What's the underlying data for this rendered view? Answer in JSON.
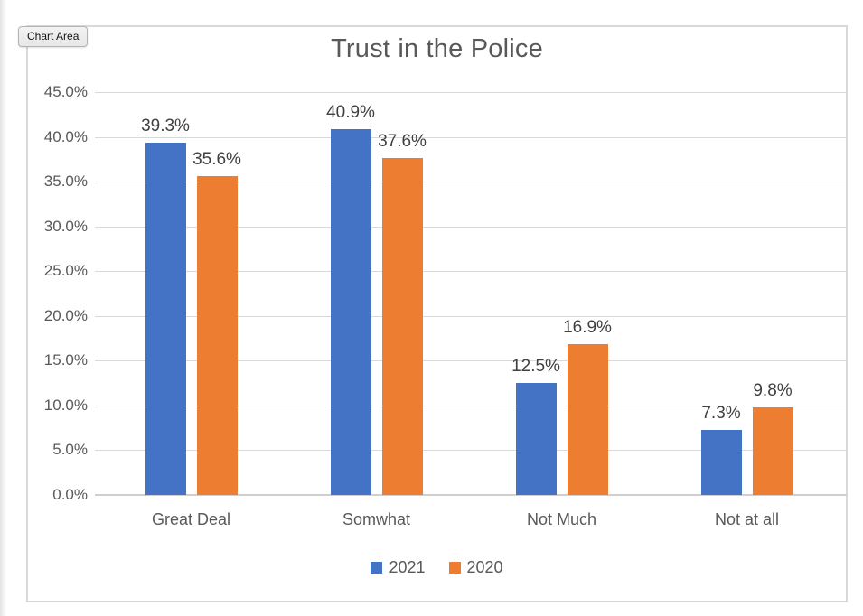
{
  "tooltip": {
    "label": "Chart Area"
  },
  "chart_data": {
    "type": "bar",
    "title": "Trust in the Police",
    "categories": [
      "Great Deal",
      "Somwhat",
      "Not Much",
      "Not at all"
    ],
    "series": [
      {
        "name": "2021",
        "color": "#4472c4",
        "values": [
          39.3,
          40.9,
          12.5,
          7.3
        ],
        "data_labels": [
          "39.3%",
          "40.9%",
          "12.5%",
          "7.3%"
        ]
      },
      {
        "name": "2020",
        "color": "#ed7d31",
        "values": [
          35.6,
          37.6,
          16.9,
          9.8
        ],
        "data_labels": [
          "35.6%",
          "37.6%",
          "16.9%",
          "9.8%"
        ]
      }
    ],
    "xlabel": "",
    "ylabel": "",
    "y_axis": {
      "min": 0,
      "max": 45,
      "step": 5,
      "tick_labels": [
        "0.0%",
        "5.0%",
        "10.0%",
        "15.0%",
        "20.0%",
        "25.0%",
        "30.0%",
        "35.0%",
        "40.0%",
        "45.0%"
      ]
    },
    "ylim": [
      0,
      45
    ],
    "grid": true,
    "legend_position": "bottom",
    "colors": {
      "series_2021": "#4472c4",
      "series_2020": "#ed7d31",
      "gridline": "#d9d9d9",
      "text": "#595959",
      "data_label_text": "#3f3f3f"
    }
  }
}
